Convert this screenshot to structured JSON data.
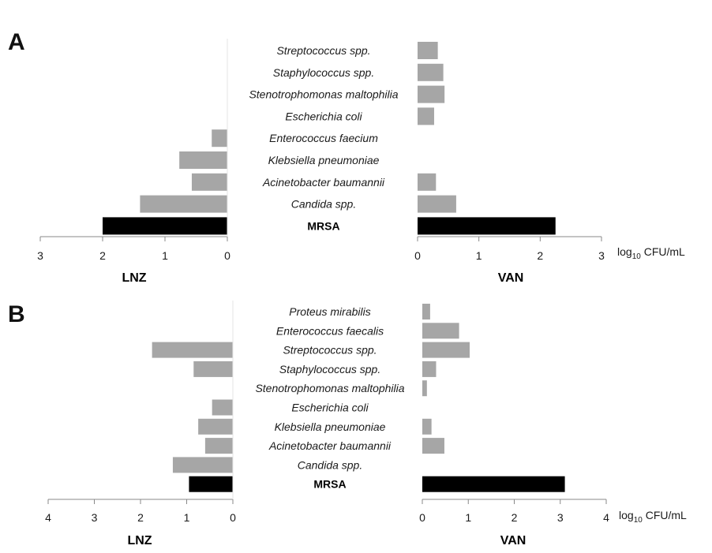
{
  "chart_data": [
    {
      "type": "bar",
      "orientation": "horizontal-diverging",
      "panel_label": "A",
      "categories": [
        "Streptococcus spp.",
        "Staphylococcus spp.",
        "Stenotrophomonas maltophilia",
        "Escherichia coli",
        "Enterococcus faecium",
        "Klebsiella pneumoniae",
        "Acinetobacter baumannii",
        "Candida spp.",
        "MRSA"
      ],
      "highlight_category": "MRSA",
      "left": {
        "name": "LNZ",
        "xlabel": "LNZ",
        "values": [
          0,
          0,
          0,
          0,
          0.25,
          0.77,
          0.57,
          1.4,
          2.0
        ],
        "xlim": [
          0,
          3
        ],
        "ticks": [
          "3",
          "2",
          "1",
          "0"
        ]
      },
      "right": {
        "name": "VAN",
        "xlabel": "VAN",
        "values": [
          0.33,
          0.42,
          0.44,
          0.27,
          0,
          0,
          0.3,
          0.63,
          2.25
        ],
        "xlim": [
          0,
          3
        ],
        "ticks": [
          "0",
          "1",
          "2",
          "3"
        ],
        "unit_label": {
          "main": "log",
          "sub": "10",
          "rest": " CFU/mL"
        }
      },
      "colors": {
        "bar": "#a6a6a6",
        "highlight": "#000000"
      }
    },
    {
      "type": "bar",
      "orientation": "horizontal-diverging",
      "panel_label": "B",
      "categories": [
        "Proteus mirabilis",
        "Enterococcus faecalis",
        "Streptococcus spp.",
        "Staphylococcus spp.",
        "Stenotrophomonas maltophilia",
        "Escherichia coli",
        "Klebsiella pneumoniae",
        "Acinetobacter baumannii",
        "Candida spp.",
        "MRSA"
      ],
      "highlight_category": "MRSA",
      "left": {
        "name": "LNZ",
        "xlabel": "LNZ",
        "values": [
          0,
          0,
          1.75,
          0.85,
          0,
          0.45,
          0.75,
          0.6,
          1.3,
          0.95
        ],
        "xlim": [
          0,
          4
        ],
        "ticks": [
          "4",
          "3",
          "2",
          "1",
          "0"
        ]
      },
      "right": {
        "name": "VAN",
        "xlabel": "VAN",
        "values": [
          0.17,
          0.8,
          1.03,
          0.3,
          0.1,
          0,
          0.2,
          0.48,
          0,
          3.1
        ],
        "xlim": [
          0,
          4
        ],
        "ticks": [
          "0",
          "1",
          "2",
          "3",
          "4"
        ],
        "unit_label": {
          "main": "log",
          "sub": "10",
          "rest": " CFU/mL"
        }
      },
      "colors": {
        "bar": "#a6a6a6",
        "highlight": "#000000"
      }
    }
  ]
}
